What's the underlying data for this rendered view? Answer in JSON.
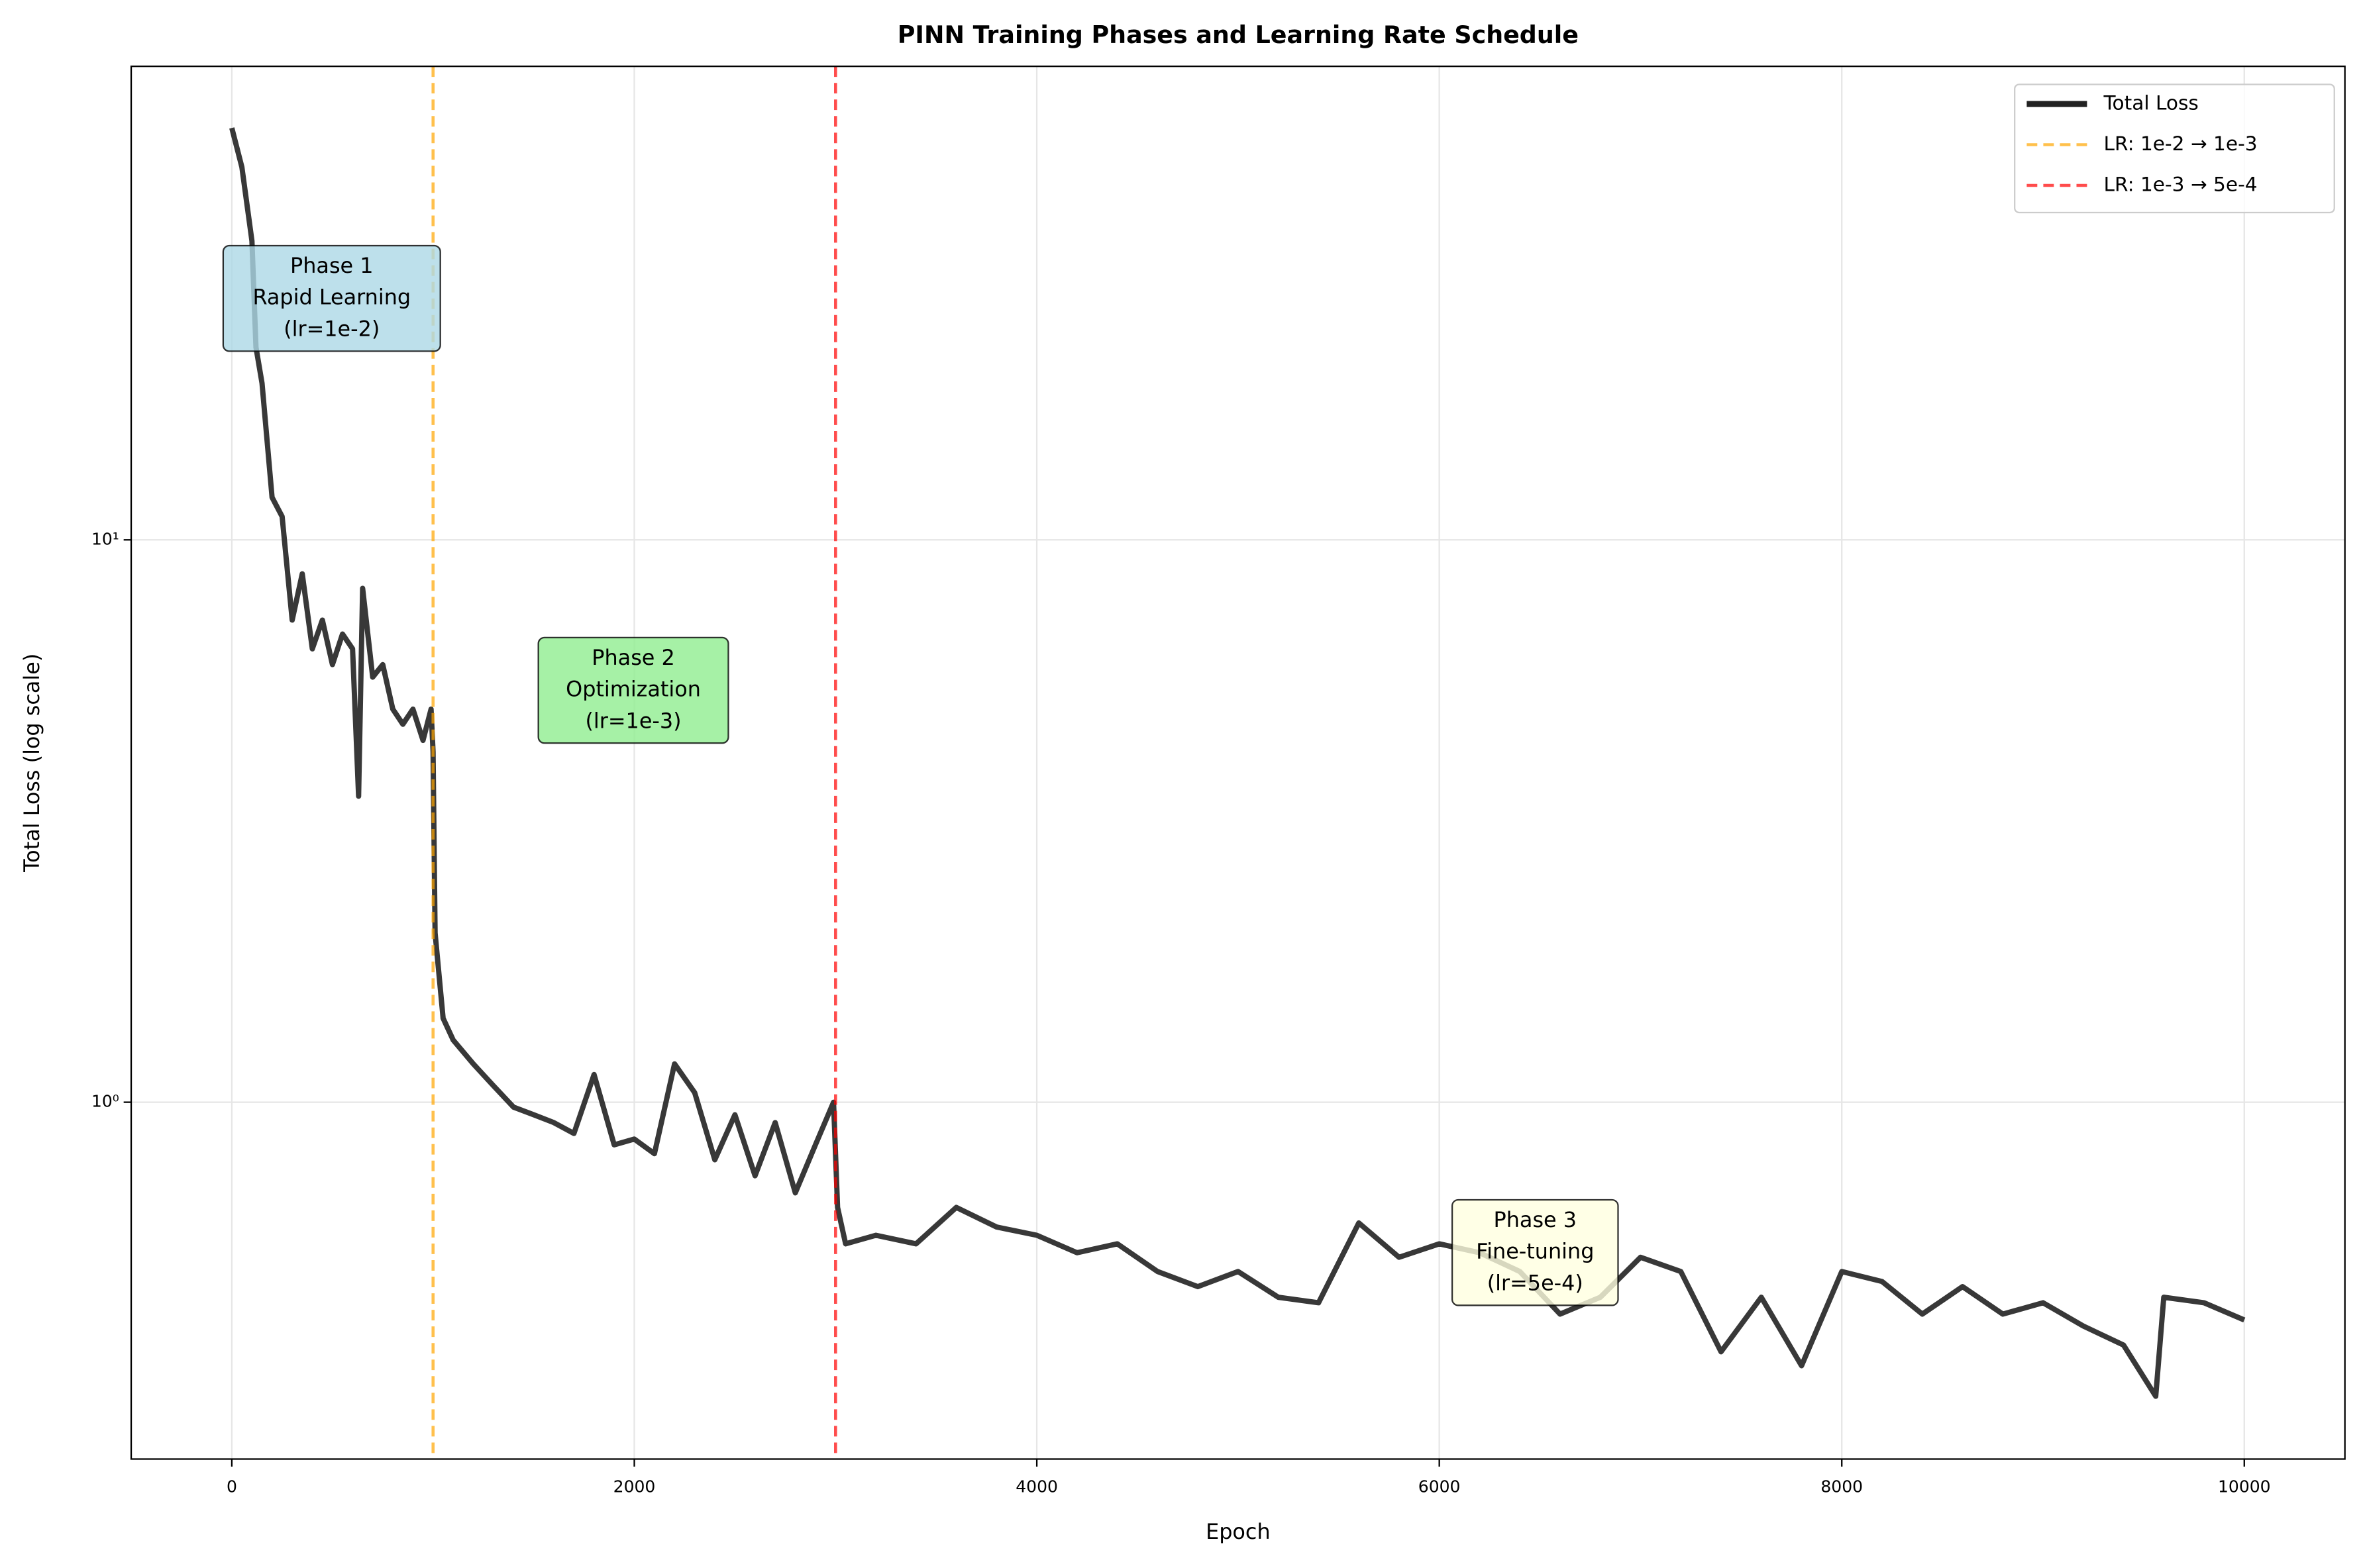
{
  "chart_data": {
    "type": "line",
    "title": "PINN Training Phases and Learning Rate Schedule",
    "x_label": "Epoch",
    "y_label": "Total Loss (log scale)",
    "log_y": true,
    "grid": true,
    "legend": "upper right",
    "xlim": [
      -500,
      10500
    ],
    "ylim": [
      0.232,
      69.5
    ],
    "xticks": [
      0,
      2000,
      4000,
      6000,
      8000,
      10000
    ],
    "yticks": [
      {
        "value": 1,
        "label": "10⁰"
      },
      {
        "value": 10,
        "label": "10¹"
      }
    ],
    "x": [
      0,
      50,
      100,
      120,
      150,
      200,
      250,
      300,
      350,
      400,
      450,
      500,
      550,
      600,
      630,
      650,
      700,
      750,
      800,
      850,
      900,
      950,
      990,
      1000,
      1010,
      1050,
      1100,
      1200,
      1300,
      1400,
      1500,
      1600,
      1700,
      1800,
      1900,
      2000,
      2100,
      2200,
      2300,
      2400,
      2500,
      2600,
      2700,
      2800,
      2900,
      2990,
      3010,
      3050,
      3200,
      3400,
      3600,
      3800,
      4000,
      4200,
      4400,
      4600,
      4800,
      5000,
      5200,
      5400,
      5600,
      5800,
      6000,
      6200,
      6400,
      6600,
      6800,
      7000,
      7200,
      7400,
      7600,
      7800,
      8000,
      8200,
      8400,
      8600,
      8800,
      9000,
      9200,
      9400,
      9560,
      9600,
      9800,
      10000
    ],
    "series": [
      {
        "name": "Total Loss",
        "color": "#222222",
        "values": [
          54,
          46,
          34,
          22,
          19,
          11.9,
          11,
          7.2,
          8.7,
          6.4,
          7.2,
          6,
          6.8,
          6.4,
          3.5,
          8.2,
          5.7,
          6,
          5,
          4.7,
          5,
          4.4,
          5,
          4.2,
          2.0,
          1.41,
          1.29,
          1.17,
          1.07,
          0.98,
          0.95,
          0.92,
          0.88,
          1.12,
          0.84,
          0.86,
          0.81,
          1.17,
          1.04,
          0.79,
          0.95,
          0.74,
          0.92,
          0.69,
          0.84,
          1.0,
          0.65,
          0.56,
          0.58,
          0.56,
          0.65,
          0.6,
          0.58,
          0.54,
          0.56,
          0.5,
          0.47,
          0.5,
          0.45,
          0.44,
          0.61,
          0.53,
          0.56,
          0.54,
          0.5,
          0.42,
          0.45,
          0.53,
          0.5,
          0.36,
          0.45,
          0.34,
          0.5,
          0.48,
          0.42,
          0.47,
          0.42,
          0.44,
          0.4,
          0.37,
          0.3,
          0.45,
          0.44,
          0.41
        ]
      }
    ],
    "vlines": [
      {
        "name": "LR: 1e-2 → 1e-3",
        "x": 1000,
        "color": "#ffa500"
      },
      {
        "name": "LR: 1e-3 → 5e-4",
        "x": 3000,
        "color": "#ff0000"
      }
    ],
    "annotations": [
      {
        "lines": [
          "Phase 1",
          "Rapid Learning",
          "(lr=1e-2)"
        ],
        "color": "#add8e6"
      },
      {
        "lines": [
          "Phase 2",
          "Optimization",
          "(lr=1e-3)"
        ],
        "color": "#90ee90"
      },
      {
        "lines": [
          "Phase 3",
          "Fine-tuning",
          "(lr=5e-4)"
        ],
        "color": "#ffffe0"
      }
    ]
  }
}
